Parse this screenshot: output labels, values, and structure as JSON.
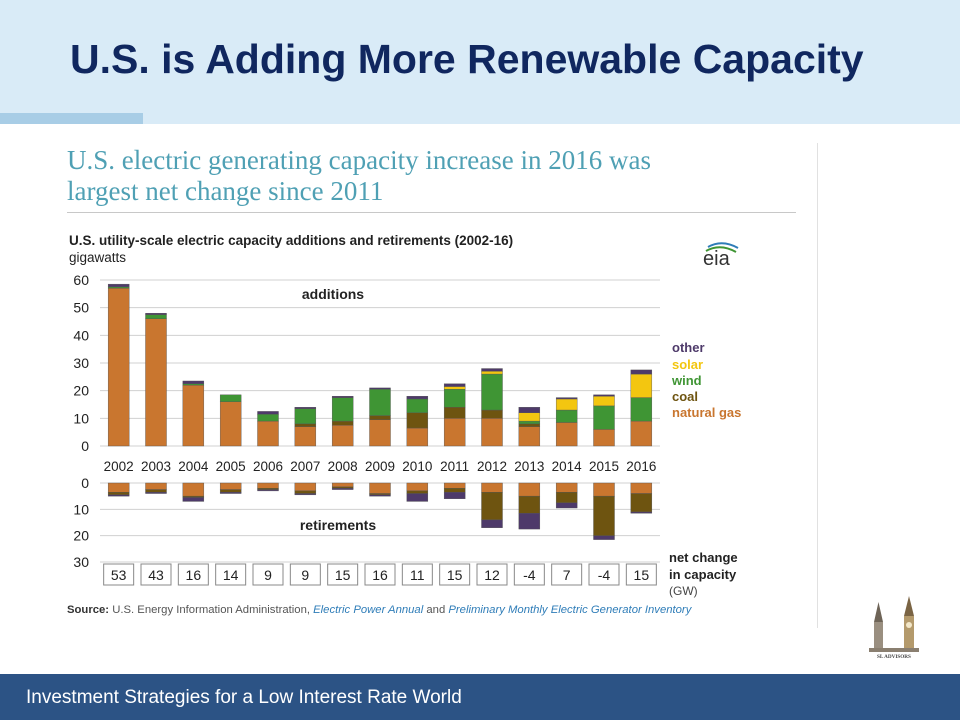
{
  "slide": {
    "title": "U.S. is Adding More Renewable Capacity",
    "footer": "Investment Strategies for a Low Interest Rate World",
    "logo_text": "SL ADVISORS"
  },
  "chart_title": {
    "line1": "U.S. electric generating capacity increase in 2016 was",
    "line2": "largest net change since 2011"
  },
  "source": {
    "label": "Source:",
    "org": "U.S. Energy Information Administration,",
    "pub1": "Electric Power Annual",
    "and": "and",
    "pub2": "Preliminary Monthly Electric Generator Inventory"
  },
  "colors": {
    "other": "#4e3a6a",
    "solar": "#f3c610",
    "wind": "#3f9534",
    "coal": "#6e5410",
    "natural_gas": "#c9762f"
  },
  "chart_data": {
    "type": "bar",
    "title": "U.S. utility-scale electric capacity additions and retirements (2002-16)",
    "unit": "gigawatts",
    "logo": "eia",
    "categories": [
      "2002",
      "2003",
      "2004",
      "2005",
      "2006",
      "2007",
      "2008",
      "2009",
      "2010",
      "2011",
      "2012",
      "2013",
      "2014",
      "2015",
      "2016"
    ],
    "additions_label": "additions",
    "retirements_label": "retirements",
    "additions_ylim": [
      0,
      60
    ],
    "additions_ticks": [
      "60",
      "50",
      "40",
      "30",
      "20",
      "10",
      "0"
    ],
    "retirements_ylim": [
      0,
      30
    ],
    "retirements_ticks": [
      "0",
      "10",
      "20",
      "30"
    ],
    "grid": true,
    "legend_position": "right",
    "legend": [
      "other",
      "solar",
      "wind",
      "coal",
      "natural gas"
    ],
    "additions": [
      {
        "name": "natural gas",
        "values": [
          57,
          46,
          22,
          16,
          9,
          7,
          7.5,
          9.5,
          6.5,
          10,
          10,
          7,
          8.5,
          6,
          9
        ]
      },
      {
        "name": "coal",
        "values": [
          0,
          0,
          0,
          0,
          0,
          1,
          1.5,
          1.5,
          5.5,
          4,
          3,
          1,
          0,
          0,
          0
        ]
      },
      {
        "name": "wind",
        "values": [
          0.5,
          1.5,
          0.5,
          2.5,
          2.5,
          5.5,
          8.5,
          9.5,
          5,
          6.5,
          13,
          1,
          4.5,
          8.5,
          8.5
        ]
      },
      {
        "name": "solar",
        "values": [
          0,
          0,
          0,
          0,
          0,
          0,
          0,
          0,
          0,
          1,
          1,
          3,
          4,
          3.5,
          8.5
        ]
      },
      {
        "name": "other",
        "values": [
          1,
          0.5,
          1,
          0,
          1,
          0.5,
          0.5,
          0.5,
          1,
          1,
          1,
          2,
          0.5,
          0.5,
          1.5
        ]
      }
    ],
    "retirements": [
      {
        "name": "natural gas",
        "values": [
          3.5,
          2.5,
          5,
          2.5,
          2,
          3,
          1.5,
          4,
          3,
          2,
          3.5,
          5,
          3.5,
          5,
          4
        ]
      },
      {
        "name": "coal",
        "values": [
          1,
          1,
          0.5,
          1,
          0.5,
          1,
          0.5,
          0.5,
          1,
          1.5,
          10.5,
          6.5,
          4,
          15,
          7
        ]
      },
      {
        "name": "other",
        "values": [
          0.5,
          0.5,
          1.5,
          0.5,
          0.5,
          0.5,
          0.5,
          0.5,
          3,
          2.5,
          3,
          6,
          2,
          1.5,
          0.5
        ]
      }
    ],
    "net_change_label_1": "net change",
    "net_change_label_2": "in capacity",
    "net_change_unit": "(GW)",
    "net_change": [
      "53",
      "43",
      "16",
      "14",
      "9",
      "9",
      "15",
      "16",
      "11",
      "15",
      "12",
      "-4",
      "7",
      "-4",
      "15"
    ]
  }
}
